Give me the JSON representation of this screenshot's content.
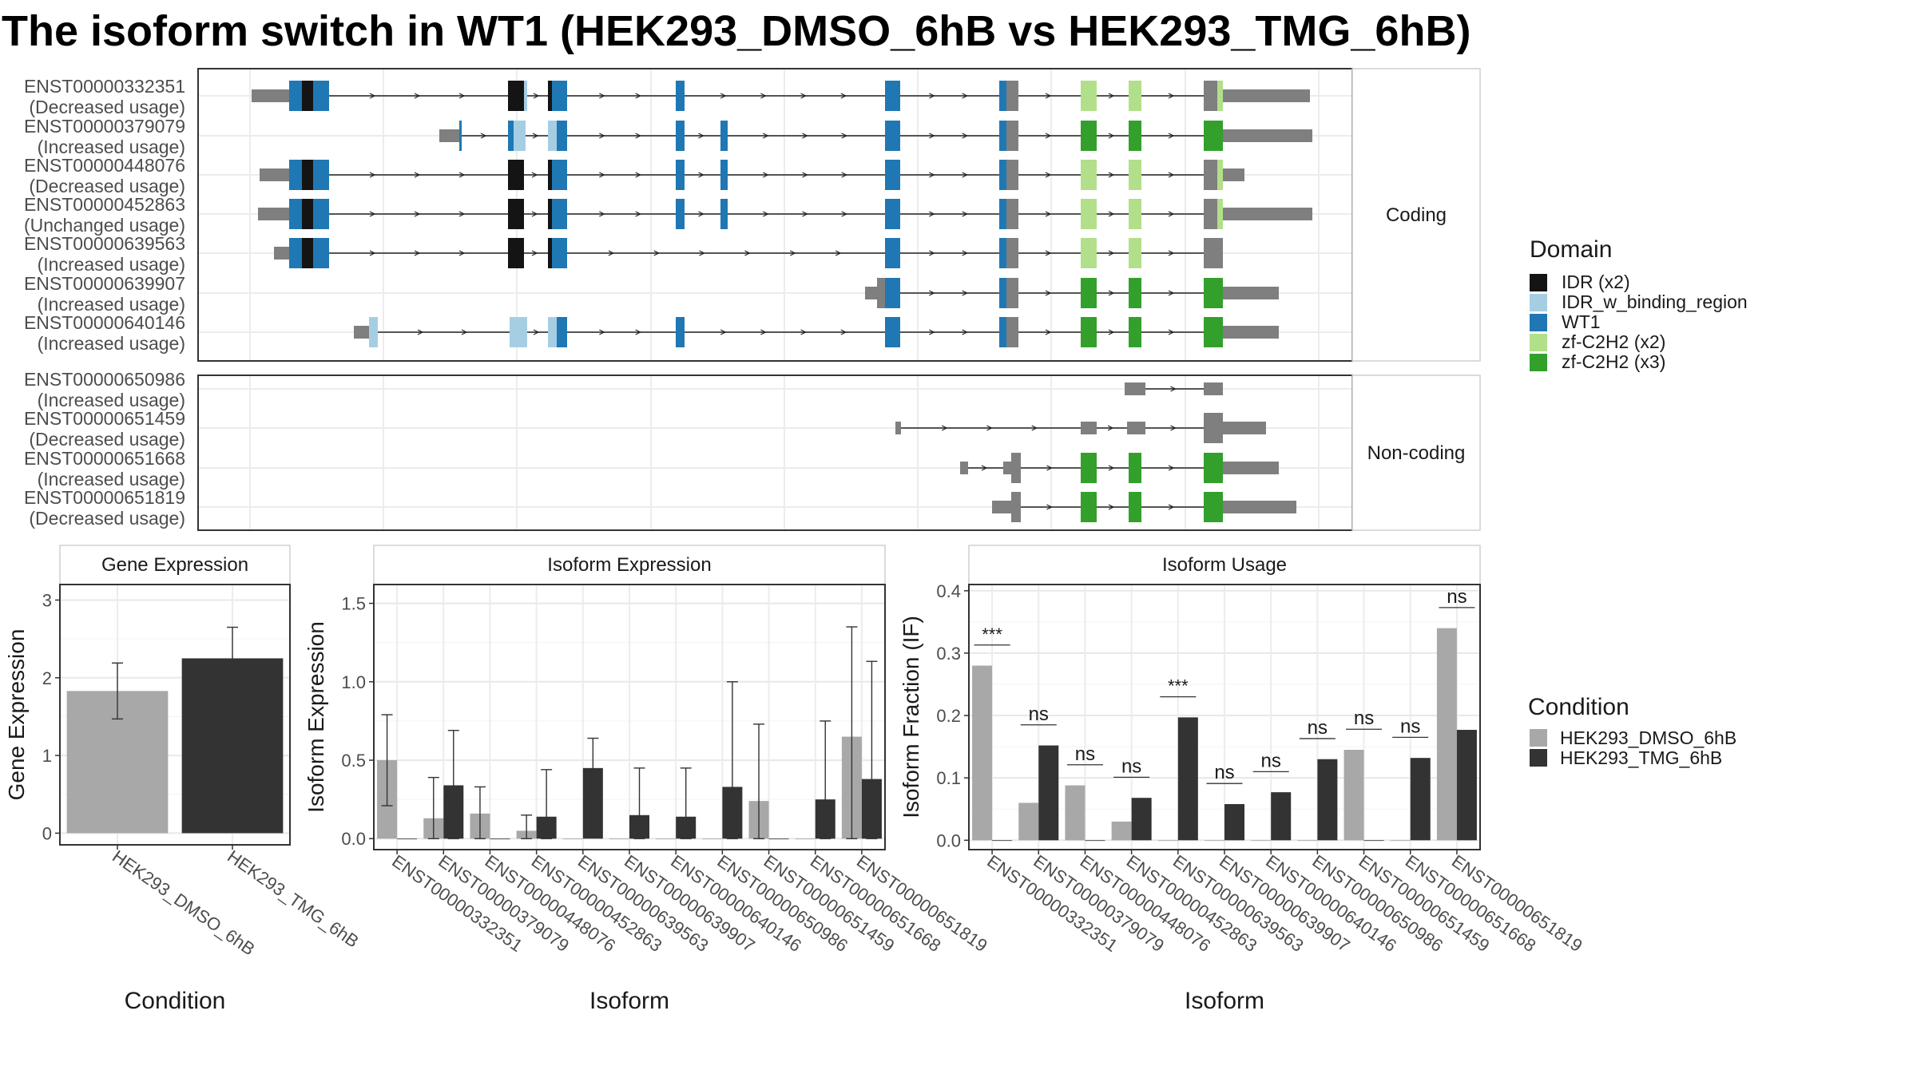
{
  "title": "The isoform switch in WT1 (HEK293_DMSO_6hB vs HEK293_TMG_6hB)",
  "structure": {
    "coding_label": "Coding",
    "noncoding_label": "Non-coding",
    "coding": [
      {
        "id": "ENST00000332351",
        "usage": "(Decreased usage)"
      },
      {
        "id": "ENST00000379079",
        "usage": "(Increased usage)"
      },
      {
        "id": "ENST00000448076",
        "usage": "(Decreased usage)"
      },
      {
        "id": "ENST00000452863",
        "usage": "(Unchanged usage)"
      },
      {
        "id": "ENST00000639563",
        "usage": "(Increased usage)"
      },
      {
        "id": "ENST00000639907",
        "usage": "(Increased usage)"
      },
      {
        "id": "ENST00000640146",
        "usage": "(Increased usage)"
      }
    ],
    "noncoding": [
      {
        "id": "ENST00000650986",
        "usage": "(Increased usage)"
      },
      {
        "id": "ENST00000651459",
        "usage": "(Decreased usage)"
      },
      {
        "id": "ENST00000651668",
        "usage": "(Increased usage)"
      },
      {
        "id": "ENST00000651819",
        "usage": "(Decreased usage)"
      }
    ]
  },
  "domain_legend": {
    "title": "Domain",
    "items": [
      {
        "label": "IDR (x2)",
        "color": "#141414"
      },
      {
        "label": "IDR_w_binding_region",
        "color": "#a6cee3"
      },
      {
        "label": "WT1",
        "color": "#1f78b4"
      },
      {
        "label": "zf-C2H2 (x2)",
        "color": "#b2df8a"
      },
      {
        "label": "zf-C2H2 (x3)",
        "color": "#33a02c"
      }
    ]
  },
  "condition_legend": {
    "title": "Condition",
    "items": [
      {
        "label": "HEK293_DMSO_6hB",
        "color": "#a8a8a8"
      },
      {
        "label": "HEK293_TMG_6hB",
        "color": "#333333"
      }
    ]
  },
  "chart_data": [
    {
      "type": "bar",
      "title": "Gene Expression",
      "xlabel": "Condition",
      "ylabel": "Gene Expression",
      "categories": [
        "HEK293_DMSO_6hB",
        "HEK293_TMG_6hB"
      ],
      "values": [
        1.83,
        2.25
      ],
      "err_low": [
        1.47,
        1.85
      ],
      "err_high": [
        2.19,
        2.65
      ],
      "ylim": [
        -0.15,
        3.2
      ],
      "yticks": [
        0,
        1,
        2,
        3
      ]
    },
    {
      "type": "bar",
      "title": "Isoform Expression",
      "xlabel": "Isoform",
      "ylabel": "Isoform Expression",
      "categories": [
        "ENST00000332351",
        "ENST00000379079",
        "ENST00000448076",
        "ENST00000452863",
        "ENST00000639563",
        "ENST00000639907",
        "ENST00000640146",
        "ENST00000650986",
        "ENST00000651459",
        "ENST00000651668",
        "ENST00000651819"
      ],
      "series": [
        {
          "name": "HEK293_DMSO_6hB",
          "values": [
            0.5,
            0.13,
            0.16,
            0.05,
            0,
            0,
            0,
            0,
            0.24,
            0,
            0.65
          ],
          "err_low": [
            0.21,
            0,
            0,
            0,
            0,
            0,
            0,
            0,
            0,
            0,
            0
          ],
          "err_high": [
            0.79,
            0.39,
            0.33,
            0.15,
            0,
            0,
            0,
            0,
            0.73,
            0,
            1.35
          ]
        },
        {
          "name": "HEK293_TMG_6hB",
          "values": [
            0,
            0.34,
            0,
            0.14,
            0.45,
            0.15,
            0.14,
            0.33,
            0,
            0.25,
            0.38
          ],
          "err_low": [
            0,
            0,
            0,
            0,
            0.27,
            0,
            0,
            0,
            0,
            0,
            0
          ],
          "err_high": [
            0,
            0.69,
            0,
            0.44,
            0.64,
            0.45,
            0.45,
            1.0,
            0,
            0.75,
            1.13
          ]
        }
      ],
      "ylim": [
        -0.07,
        1.62
      ],
      "yticks": [
        0.0,
        0.5,
        1.0,
        1.5
      ]
    },
    {
      "type": "bar",
      "title": "Isoform Usage",
      "xlabel": "Isoform",
      "ylabel": "Isoform Fraction (IF)",
      "categories": [
        "ENST00000332351",
        "ENST00000379079",
        "ENST00000448076",
        "ENST00000452863",
        "ENST00000639563",
        "ENST00000639907",
        "ENST00000640146",
        "ENST00000650986",
        "ENST00000651459",
        "ENST00000651668",
        "ENST00000651819"
      ],
      "series": [
        {
          "name": "HEK293_DMSO_6hB",
          "values": [
            0.28,
            0.06,
            0.088,
            0.03,
            0,
            0,
            0,
            0,
            0.145,
            0,
            0.34
          ]
        },
        {
          "name": "HEK293_TMG_6hB",
          "values": [
            0,
            0.152,
            0,
            0.068,
            0.197,
            0.058,
            0.077,
            0.13,
            0,
            0.132,
            0.177
          ]
        }
      ],
      "significance": [
        "***",
        "ns",
        "ns",
        "ns",
        "***",
        "ns",
        "ns",
        "ns",
        "ns",
        "ns",
        "ns"
      ],
      "ylim": [
        -0.015,
        0.41
      ],
      "yticks": [
        0.0,
        0.1,
        0.2,
        0.3,
        0.4
      ]
    }
  ]
}
